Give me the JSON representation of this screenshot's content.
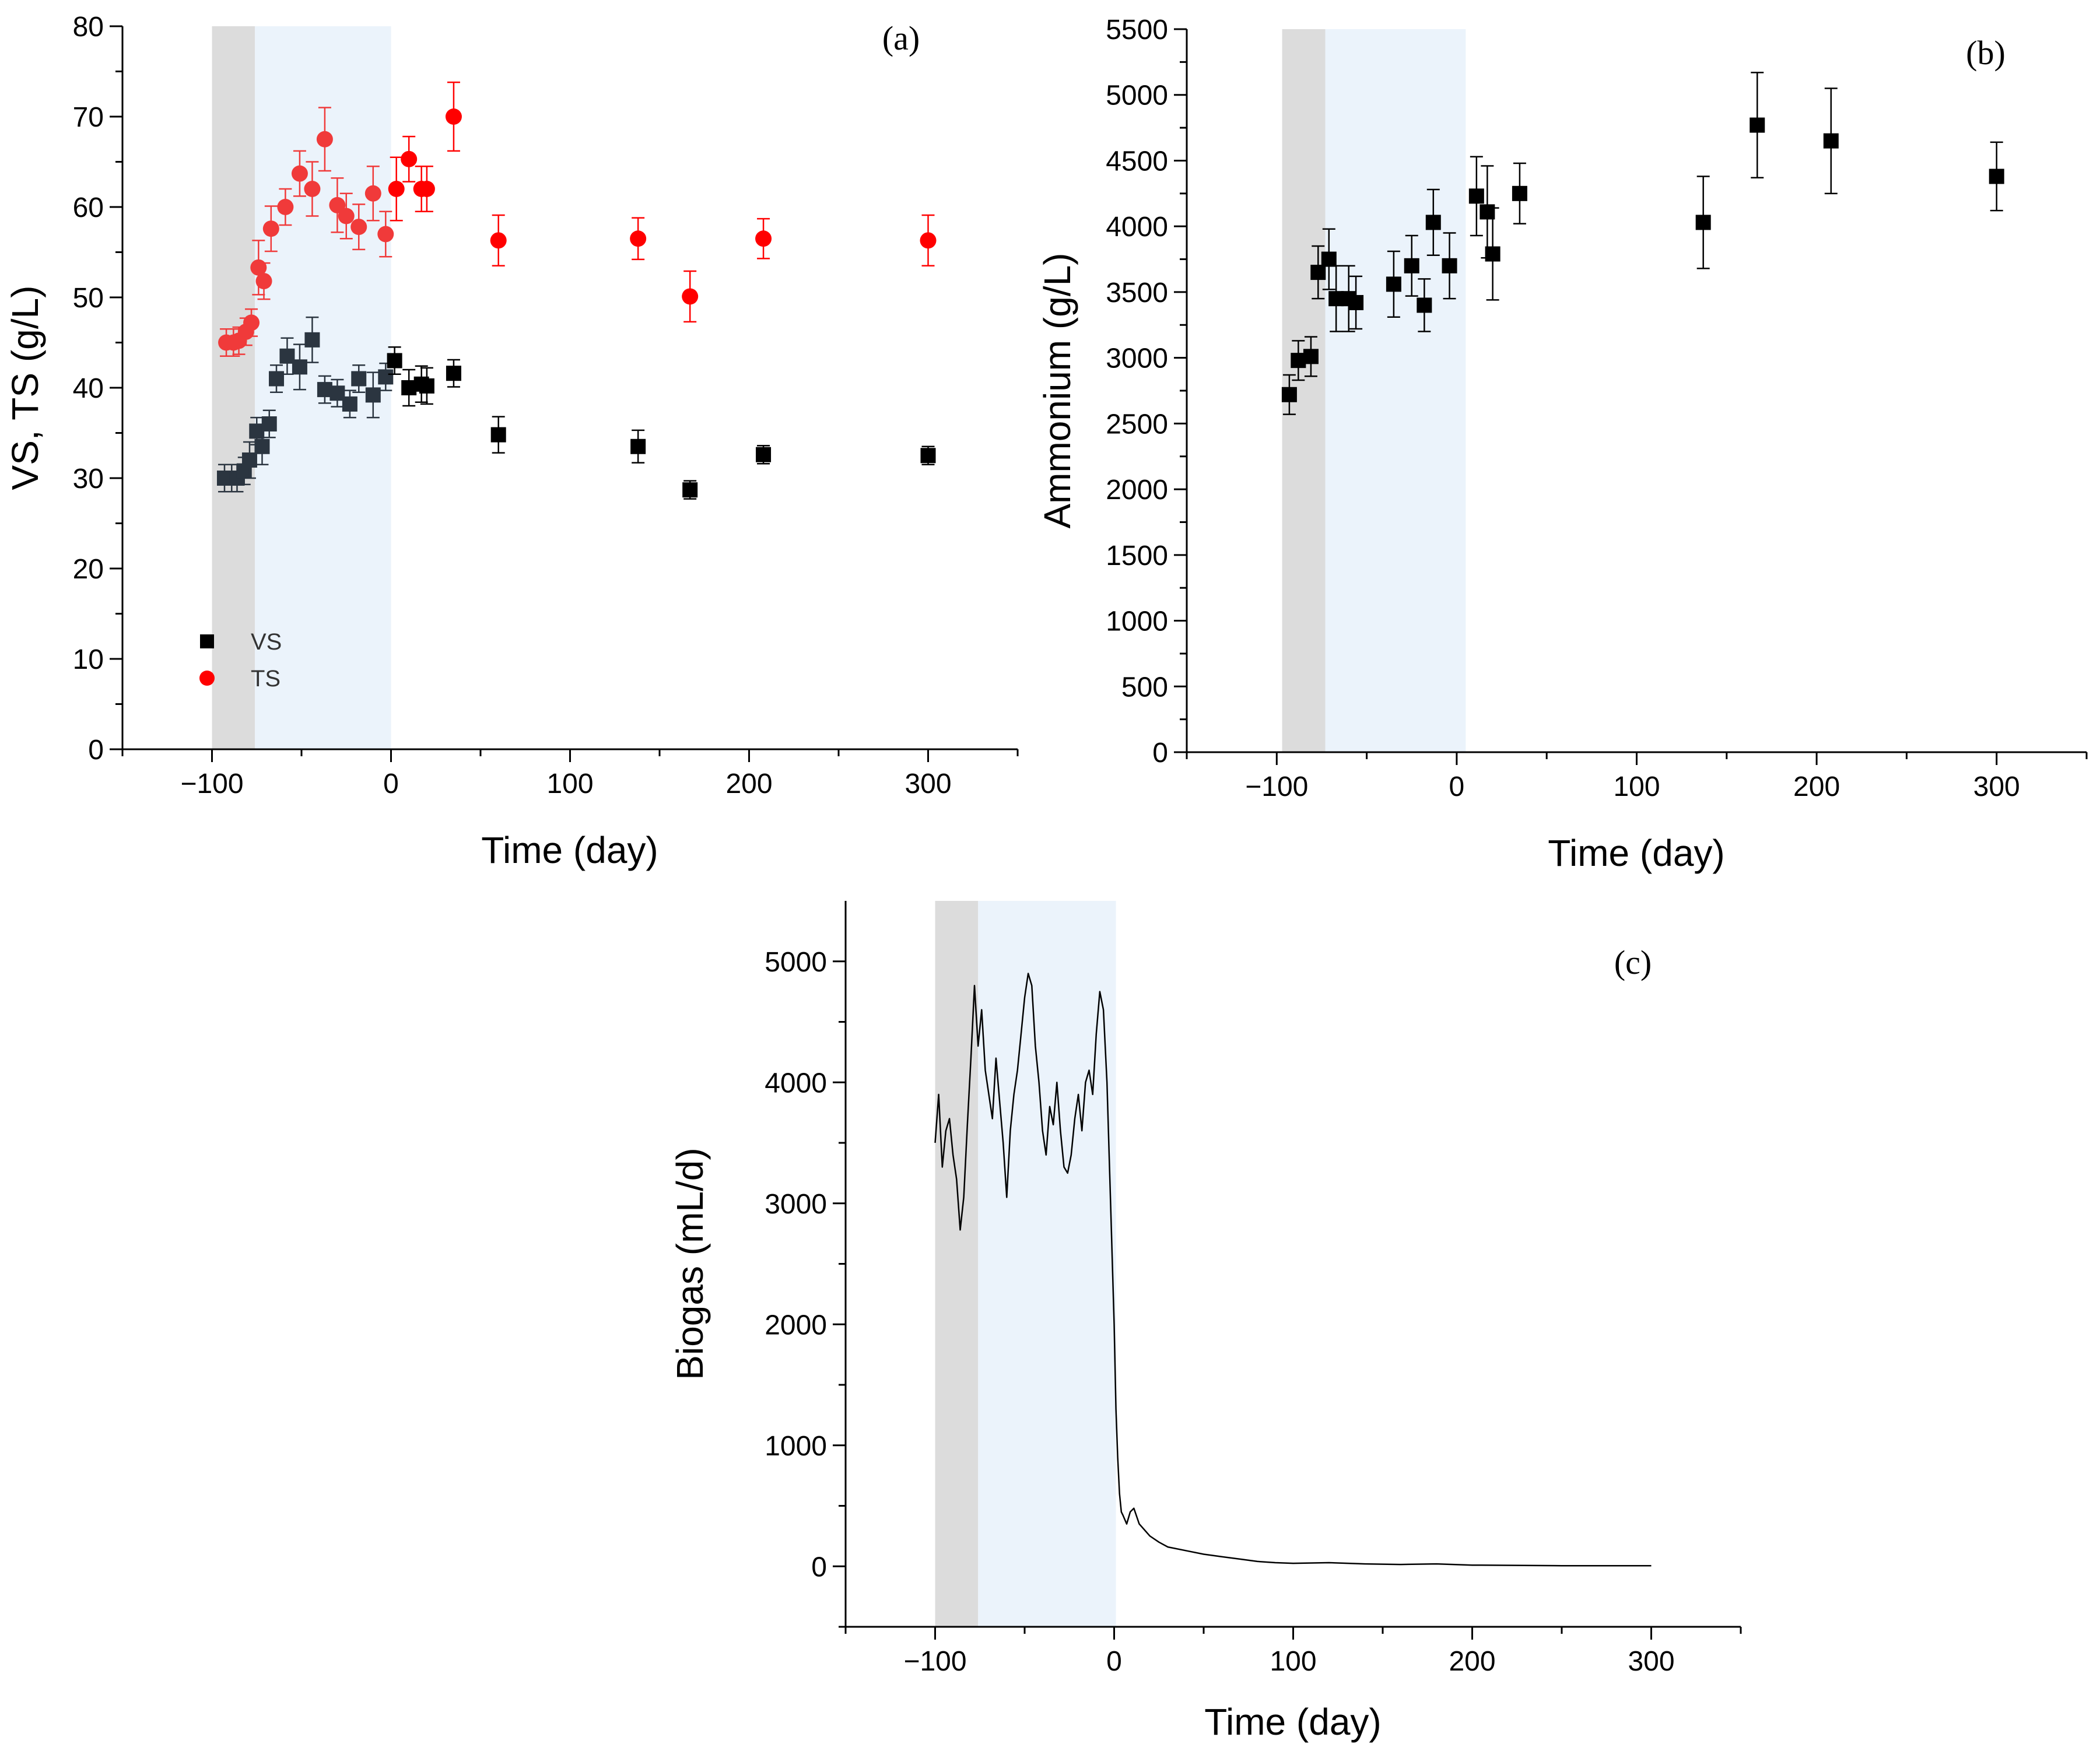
{
  "chart_data": [
    {
      "panel_tag": "(a)",
      "type": "scatter",
      "xlabel": "Time (day)",
      "ylabel": "VS, TS (g/L)",
      "xlim": [
        -150,
        350
      ],
      "ylim": [
        0,
        80
      ],
      "xticks": [
        -100,
        0,
        100,
        200,
        300
      ],
      "yticks": [
        0,
        10,
        20,
        30,
        40,
        50,
        60,
        70,
        80
      ],
      "shaded_regions": [
        {
          "x": [
            -100,
            -76
          ],
          "color": "#dcdcdc"
        },
        {
          "x": [
            -76,
            0
          ],
          "color": "#ebf3fb"
        }
      ],
      "legend": {
        "position": "bottom-left"
      },
      "series": [
        {
          "name": "VS",
          "marker": "square",
          "color": "#000000",
          "early_color": "#2b3540",
          "x": [
            -93,
            -89,
            -86,
            -82,
            -79,
            -75,
            -72,
            -68,
            -64,
            -58,
            -51,
            -44,
            -37,
            -30,
            -23,
            -18,
            -10,
            -3,
            2,
            10,
            17,
            20,
            35,
            60,
            138,
            167,
            208,
            300
          ],
          "y": [
            30.0,
            30.0,
            30.0,
            30.8,
            32.0,
            35.2,
            33.5,
            36.0,
            41.0,
            43.5,
            42.3,
            45.3,
            39.8,
            39.4,
            38.2,
            41.0,
            39.2,
            41.2,
            43.0,
            40.0,
            40.4,
            40.2,
            41.6,
            34.8,
            33.5,
            28.7,
            32.6,
            32.5
          ],
          "err": [
            1.5,
            1.5,
            1.5,
            1.5,
            2.0,
            1.5,
            2.0,
            1.5,
            1.5,
            2.0,
            2.5,
            2.5,
            1.5,
            1.5,
            1.5,
            1.5,
            2.5,
            1.5,
            1.5,
            2.0,
            2.0,
            2.0,
            1.5,
            2.0,
            1.8,
            1.0,
            1.0,
            1.0
          ]
        },
        {
          "name": "TS",
          "marker": "circle",
          "color": "#ff0000",
          "early_color": "#f03a3a",
          "x": [
            -92,
            -88,
            -85,
            -81,
            -78,
            -74,
            -71,
            -67,
            -59,
            -51,
            -44,
            -37,
            -30,
            -25,
            -18,
            -10,
            -3,
            3,
            10,
            17,
            20,
            35,
            60,
            138,
            167,
            208,
            300
          ],
          "y": [
            45.0,
            45.0,
            45.2,
            46.2,
            47.2,
            53.3,
            51.8,
            57.6,
            60.0,
            63.7,
            62.0,
            67.5,
            60.2,
            59.0,
            57.8,
            61.5,
            57.0,
            62.0,
            65.3,
            62.0,
            62.0,
            70.0,
            56.3,
            56.5,
            50.1,
            56.5,
            56.3
          ],
          "err": [
            1.5,
            1.5,
            1.5,
            1.5,
            1.5,
            3.0,
            2.0,
            2.5,
            2.0,
            2.5,
            3.0,
            3.5,
            3.0,
            2.5,
            2.5,
            3.0,
            2.5,
            3.5,
            2.5,
            2.5,
            2.5,
            3.8,
            2.8,
            2.3,
            2.8,
            2.2,
            2.8
          ]
        }
      ]
    },
    {
      "panel_tag": "(b)",
      "type": "scatter",
      "xlabel": "Time (day)",
      "ylabel": "Ammonium (g/L)",
      "xlim": [
        -150,
        350
      ],
      "ylim": [
        0,
        5500
      ],
      "xticks": [
        -100,
        0,
        100,
        200,
        300
      ],
      "yticks": [
        0,
        500,
        1000,
        1500,
        2000,
        2500,
        3000,
        3500,
        4000,
        4500,
        5000,
        5500
      ],
      "shaded_regions": [
        {
          "x": [
            -97,
            -73
          ],
          "color": "#dcdcdc"
        },
        {
          "x": [
            -73,
            5
          ],
          "color": "#ebf3fb"
        }
      ],
      "series": [
        {
          "name": "",
          "marker": "square",
          "color": "#000000",
          "x": [
            -93,
            -88,
            -81,
            -77,
            -71,
            -67,
            -60,
            -56,
            -35,
            -25,
            -18,
            -13,
            -4,
            11,
            17,
            20,
            35,
            137,
            167,
            208,
            300
          ],
          "y": [
            2720,
            2980,
            3010,
            3650,
            3750,
            3450,
            3450,
            3420,
            3560,
            3700,
            3400,
            4030,
            3700,
            4230,
            4110,
            3790,
            4250,
            4030,
            4770,
            4650,
            4380
          ],
          "err": [
            150,
            150,
            150,
            200,
            230,
            250,
            250,
            200,
            250,
            230,
            200,
            250,
            250,
            300,
            350,
            350,
            230,
            350,
            400,
            400,
            260
          ]
        }
      ]
    },
    {
      "panel_tag": "(c)",
      "type": "line",
      "xlabel": "Time (day)",
      "ylabel": "Biogas (mL/d)",
      "xlim": [
        -150,
        350
      ],
      "ylim": [
        -500,
        5500
      ],
      "xticks": [
        -100,
        0,
        100,
        200,
        300
      ],
      "yticks": [
        0,
        1000,
        2000,
        3000,
        4000,
        5000
      ],
      "shaded_regions": [
        {
          "x": [
            -100,
            -76
          ],
          "color": "#dcdcdc"
        },
        {
          "x": [
            -76,
            1
          ],
          "color": "#ebf3fb"
        }
      ],
      "series": [
        {
          "name": "",
          "color": "#000000",
          "x": [
            -100,
            -98,
            -96,
            -94,
            -92,
            -90,
            -88,
            -86,
            -84,
            -82,
            -80,
            -78,
            -76,
            -74,
            -72,
            -70,
            -68,
            -66,
            -64,
            -62,
            -60,
            -58,
            -56,
            -54,
            -52,
            -50,
            -48,
            -46,
            -44,
            -42,
            -40,
            -38,
            -36,
            -34,
            -32,
            -30,
            -28,
            -26,
            -24,
            -22,
            -20,
            -18,
            -16,
            -14,
            -12,
            -10,
            -8,
            -6,
            -4,
            -2,
            0,
            1,
            2,
            3,
            4,
            5,
            7,
            9,
            11,
            14,
            17,
            20,
            25,
            30,
            40,
            50,
            60,
            70,
            80,
            90,
            100,
            120,
            140,
            160,
            180,
            200,
            250,
            300
          ],
          "y": [
            3500,
            3900,
            3300,
            3600,
            3700,
            3400,
            3200,
            2780,
            3050,
            3650,
            4200,
            4800,
            4300,
            4600,
            4100,
            3900,
            3700,
            4200,
            3850,
            3500,
            3050,
            3600,
            3900,
            4100,
            4400,
            4700,
            4900,
            4800,
            4300,
            4000,
            3600,
            3400,
            3800,
            3650,
            4000,
            3600,
            3300,
            3250,
            3400,
            3700,
            3900,
            3600,
            4000,
            4100,
            3900,
            4400,
            4750,
            4600,
            4000,
            3000,
            2000,
            1300,
            900,
            600,
            450,
            420,
            350,
            450,
            480,
            350,
            300,
            250,
            200,
            160,
            130,
            100,
            80,
            60,
            40,
            30,
            25,
            30,
            20,
            15,
            20,
            10,
            5,
            5
          ]
        }
      ]
    }
  ]
}
